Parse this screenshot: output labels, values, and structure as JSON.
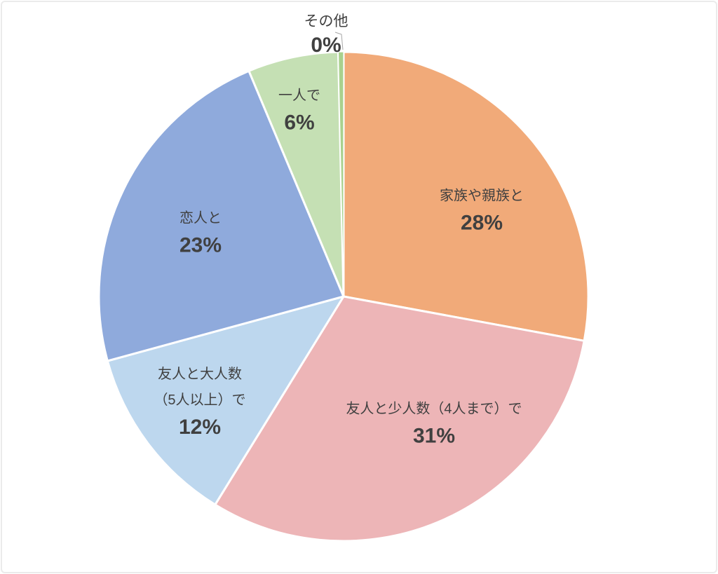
{
  "chart_data": {
    "type": "pie",
    "title": "",
    "unit": "percent",
    "start_angle_deg": 0,
    "direction": "clockwise",
    "has_legend": false,
    "data_labels": "category name and percentage inside slices; zero slice labeled outside with leader line",
    "categories": [
      "家族や親族と",
      "友人と少人数（4人まで）で",
      "友人と大人数（5人以上）で",
      "恋人と",
      "一人で",
      "その他"
    ],
    "values": [
      28,
      31,
      12,
      23,
      6,
      0
    ],
    "slices": [
      {
        "label": "家族や親族と",
        "label_lines": [
          "家族や親族と"
        ],
        "value": 28,
        "percent_display": "28%",
        "color": "#f1aa79",
        "label_placement": "inside"
      },
      {
        "label": "友人と少人数（4人まで）で",
        "label_lines": [
          "友人と少人数（4人まで）で"
        ],
        "value": 31,
        "percent_display": "31%",
        "color": "#edb5b7",
        "label_placement": "inside"
      },
      {
        "label": "友人と大人数（5人以上）で",
        "label_lines": [
          "友人と大人数",
          "（5人以上）で"
        ],
        "value": 12,
        "percent_display": "12%",
        "color": "#bdd7ee",
        "label_placement": "inside"
      },
      {
        "label": "恋人と",
        "label_lines": [
          "恋人と"
        ],
        "value": 23,
        "percent_display": "23%",
        "color": "#8faadc",
        "label_placement": "inside"
      },
      {
        "label": "一人で",
        "label_lines": [
          "一人で"
        ],
        "value": 6,
        "percent_display": "6%",
        "color": "#c5e0b4",
        "label_placement": "inside"
      },
      {
        "label": "その他",
        "label_lines": [
          "その他"
        ],
        "value": 0,
        "percent_display": "0%",
        "color": "#a9d18e",
        "label_placement": "outside-top",
        "leader_line": true
      }
    ]
  },
  "styles": {
    "label_text_color": "#404040",
    "slice_border_color": "#ffffff",
    "leader_line_color": "#a6a6a6",
    "canvas_background": "#ffffff",
    "frame_border_color": "#ebebeb"
  }
}
